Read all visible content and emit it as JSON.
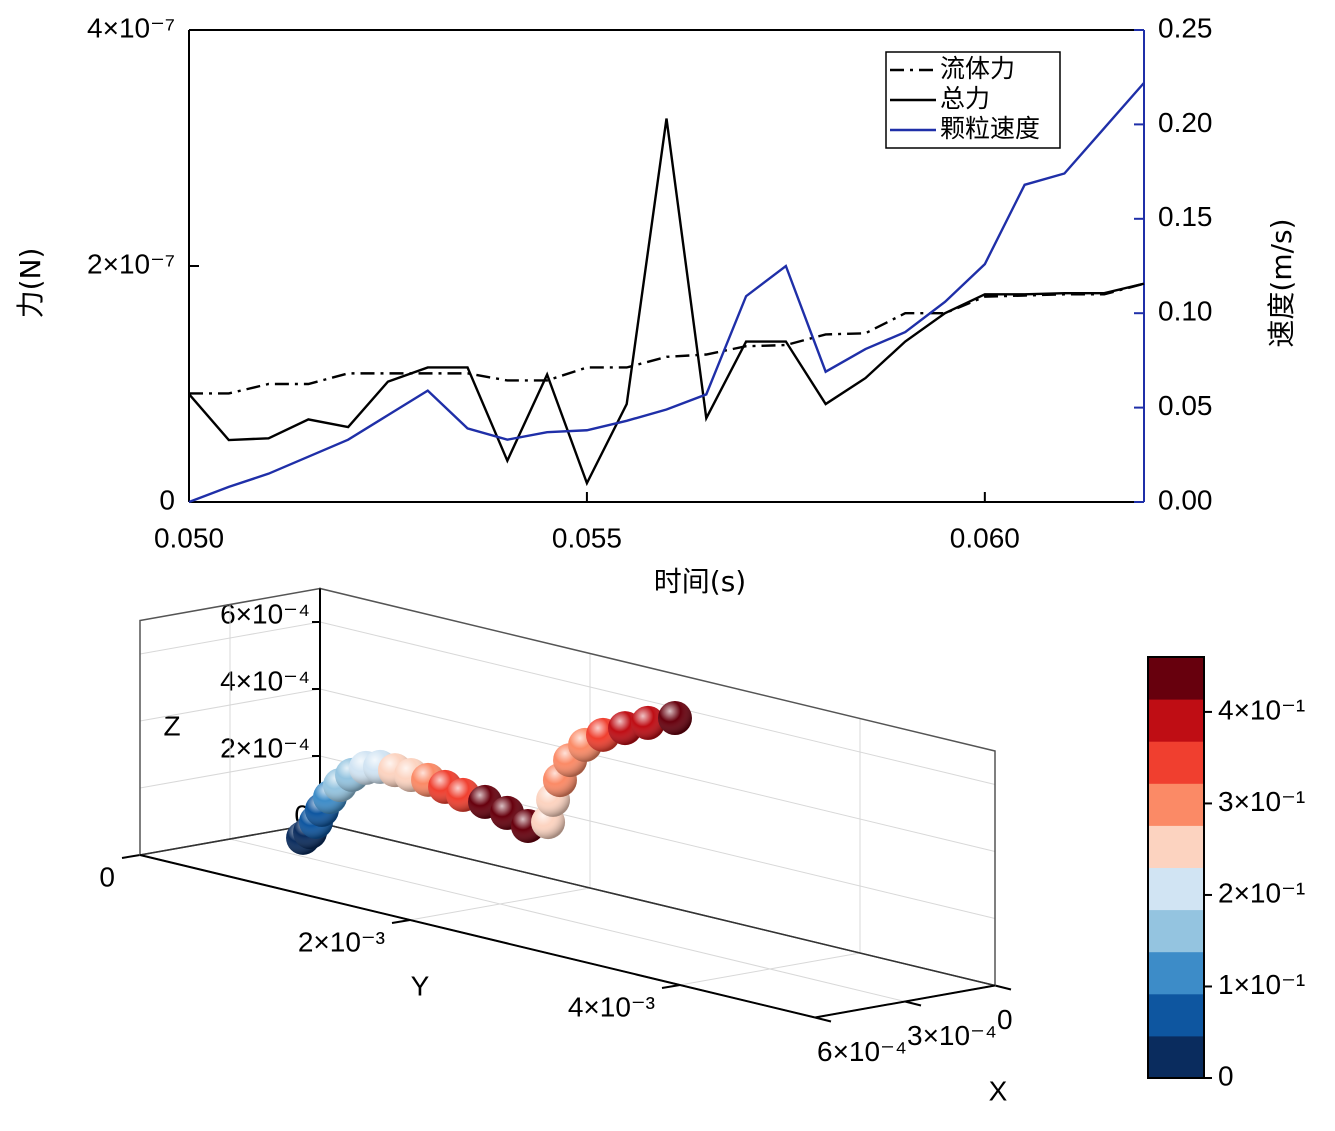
{
  "chart_data": [
    {
      "type": "line",
      "xlabel": "时间(s)",
      "ylabel": "力(N)",
      "y2label": "速度(m/s)",
      "x": [
        0.05,
        0.0505,
        0.051,
        0.0515,
        0.052,
        0.0525,
        0.053,
        0.0535,
        0.054,
        0.0545,
        0.055,
        0.0555,
        0.056,
        0.0565,
        0.057,
        0.0575,
        0.058,
        0.0585,
        0.059,
        0.0595,
        0.06,
        0.0605,
        0.061,
        0.0615,
        0.062
      ],
      "xlim": [
        0.05,
        0.062
      ],
      "xticks": [
        {
          "value": 0.05,
          "label": "0.050"
        },
        {
          "value": 0.055,
          "label": "0.055"
        },
        {
          "value": 0.06,
          "label": "0.060"
        }
      ],
      "ylim": [
        0,
        4e-07
      ],
      "yticks": [
        0,
        {
          "value": 2e-07,
          "label": "2×10⁻⁷"
        },
        {
          "value": 4e-07,
          "label": "4×10⁻⁷"
        }
      ],
      "y2lim": [
        0,
        0.25
      ],
      "y2ticks": [
        {
          "value": 0,
          "label": "0.00"
        },
        {
          "value": 0.05,
          "label": "0.05"
        },
        {
          "value": 0.1,
          "label": "0.10"
        },
        {
          "value": 0.15,
          "label": "0.15"
        },
        {
          "value": 0.2,
          "label": "0.20"
        },
        {
          "value": 0.25,
          "label": "0.25"
        }
      ],
      "y2color": "#1f2fa8",
      "legend": "upper right",
      "series": [
        {
          "name": "流体力",
          "color": "#000000",
          "linestyle": "dashdot",
          "values": [
            9.2e-08,
            9.2e-08,
            1e-07,
            1e-07,
            1.09e-07,
            1.09e-07,
            1.09e-07,
            1.09e-07,
            1.03e-07,
            1.03e-07,
            1.14e-07,
            1.14e-07,
            1.23e-07,
            1.25e-07,
            1.32e-07,
            1.33e-07,
            1.42e-07,
            1.43e-07,
            1.6e-07,
            1.6e-07,
            1.74e-07,
            1.75e-07,
            1.76e-07,
            1.76e-07,
            1.85e-07
          ]
        },
        {
          "name": "总力",
          "color": "#000000",
          "linestyle": "solid",
          "values": [
            9.15e-08,
            5.25e-08,
            5.4e-08,
            7e-08,
            6.35e-08,
            1.02e-07,
            1.14e-07,
            1.14e-07,
            3.5e-08,
            1.08e-07,
            1.6e-08,
            8.3e-08,
            3.25e-07,
            7.1e-08,
            1.36e-07,
            1.36e-07,
            8.3e-08,
            1.05e-07,
            1.36e-07,
            1.6e-07,
            1.76e-07,
            1.76e-07,
            1.77e-07,
            1.77e-07,
            1.85e-07
          ]
        },
        {
          "name": "颗粒速度",
          "color": "#1f2fa8",
          "linestyle": "solid",
          "axis": "y2",
          "values": [
            0,
            0.008,
            0.015,
            0.024,
            0.033,
            0.046,
            0.059,
            0.039,
            0.033,
            0.037,
            0.038,
            0.043,
            0.049,
            0.057,
            0.109,
            0.125,
            0.069,
            0.081,
            0.09,
            0.106,
            0.126,
            0.168,
            0.174,
            0.198,
            0.222
          ]
        }
      ]
    },
    {
      "type": "scatter3d",
      "xlabel": "X",
      "ylabel": "Y",
      "zlabel": "Z",
      "x": [
        0.0003,
        0.0003,
        0.0003,
        0.0003,
        0.0003,
        0.0003,
        0.0003,
        0.0003,
        0.0003,
        0.0003,
        0.0003,
        0.0003,
        0.0003,
        0.0003,
        0.0003,
        0.0003,
        0.0003,
        0.0003,
        0.0003,
        0.0003,
        0.0003,
        0.0003,
        0.0003,
        0.0003,
        0.0003,
        0.0003
      ],
      "y": [
        0.000541,
        0.000593,
        0.000637,
        0.000681,
        0.000741,
        0.000815,
        0.000904,
        0.001007,
        0.001111,
        0.001222,
        0.001341,
        0.001467,
        0.001593,
        0.001726,
        0.001889,
        0.002052,
        0.002207,
        0.002356,
        0.002393,
        0.002444,
        0.002519,
        0.00263,
        0.002763,
        0.002926,
        0.003096,
        0.003296
      ],
      "z": [
        5.6e-05,
        7.8e-05,
        0.000113,
        0.000153,
        0.000197,
        0.00024,
        0.000279,
        0.00031,
        0.000323,
        0.000324,
        0.000321,
        0.000319,
        0.00031,
        0.000299,
        0.000294,
        0.000277,
        0.000253,
        0.000279,
        0.000349,
        0.000413,
        0.00048,
        0.000536,
        0.000579,
        0.000615,
        0.000647,
        0.000681
      ],
      "color_values": [
        0.01,
        0.03,
        0.06,
        0.09,
        0.12,
        0.15,
        0.18,
        0.2,
        0.22,
        0.24,
        0.27,
        0.3,
        0.33,
        0.36,
        0.42,
        0.44,
        0.45,
        0.26,
        0.27,
        0.28,
        0.3,
        0.32,
        0.34,
        0.37,
        0.4,
        0.43
      ],
      "xlim": [
        0,
        0.0006
      ],
      "ylim": [
        0,
        0.005
      ],
      "zlim": [
        0,
        0.0007
      ],
      "xticks": [
        0,
        {
          "value": 0.0003,
          "label": "3×10⁻⁴"
        },
        {
          "value": 0.0006,
          "label": "6×10⁻⁴"
        }
      ],
      "yticks": [
        0,
        {
          "value": 0.002,
          "label": "2×10⁻³"
        },
        {
          "value": 0.004,
          "label": "4×10⁻³"
        }
      ],
      "zticks": [
        0,
        {
          "value": 0.0002,
          "label": "2×10⁻⁴"
        },
        {
          "value": 0.0004,
          "label": "4×10⁻⁴"
        },
        {
          "value": 0.0006,
          "label": "6×10⁻⁴"
        }
      ],
      "clim": [
        0,
        0.46
      ],
      "cticks": [
        0,
        {
          "value": 0.1,
          "label": "1×10⁻¹"
        },
        {
          "value": 0.2,
          "label": "2×10⁻¹"
        },
        {
          "value": 0.3,
          "label": "3×10⁻¹"
        },
        {
          "value": 0.4,
          "label": "4×10⁻¹"
        }
      ],
      "colormap": [
        "#0a2c5e",
        "#0e56a0",
        "#3d8cc8",
        "#94c4e0",
        "#d1e4f3",
        "#fcd3c0",
        "#fb8a66",
        "#f03f2f",
        "#bf0d14",
        "#67000d"
      ]
    }
  ]
}
